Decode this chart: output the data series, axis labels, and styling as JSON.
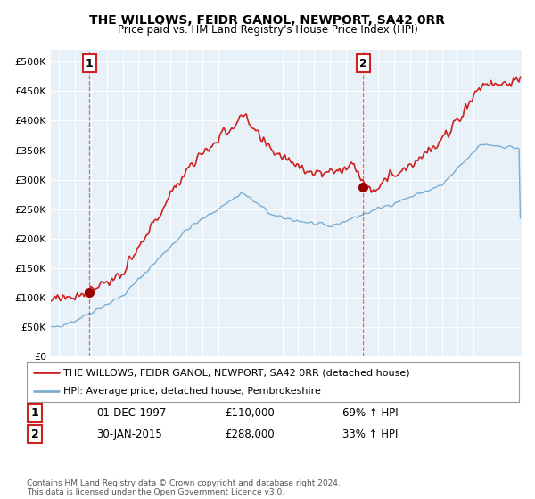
{
  "title": "THE WILLOWS, FEIDR GANOL, NEWPORT, SA42 0RR",
  "subtitle": "Price paid vs. HM Land Registry's House Price Index (HPI)",
  "ylim": [
    0,
    520000
  ],
  "ytick_labels": [
    "£0",
    "£50K",
    "£100K",
    "£150K",
    "£200K",
    "£250K",
    "£300K",
    "£350K",
    "£400K",
    "£450K",
    "£500K"
  ],
  "ytick_values": [
    0,
    50000,
    100000,
    150000,
    200000,
    250000,
    300000,
    350000,
    400000,
    450000,
    500000
  ],
  "hpi_color": "#7bafd4",
  "price_color": "#cc2222",
  "marker_color": "#990000",
  "vline_color": "#dd4444",
  "annotation_box_color": "#cc2222",
  "plot_bg_color": "#e8f0f8",
  "background_color": "#ffffff",
  "grid_color": "#ffffff",
  "legend_label_red": "THE WILLOWS, FEIDR GANOL, NEWPORT, SA42 0RR (detached house)",
  "legend_label_blue": "HPI: Average price, detached house, Pembrokeshire",
  "annotation1_date": "01-DEC-1997",
  "annotation1_price": "£110,000",
  "annotation1_hpi": "69% ↑ HPI",
  "annotation2_date": "30-JAN-2015",
  "annotation2_price": "£288,000",
  "annotation2_hpi": "33% ↑ HPI",
  "footer": "Contains HM Land Registry data © Crown copyright and database right 2024.\nThis data is licensed under the Open Government Licence v3.0.",
  "sale1_x": 1997.92,
  "sale1_y": 110000,
  "sale2_x": 2015.08,
  "sale2_y": 288000,
  "xlim_left": 1995.5,
  "xlim_right": 2025.0
}
